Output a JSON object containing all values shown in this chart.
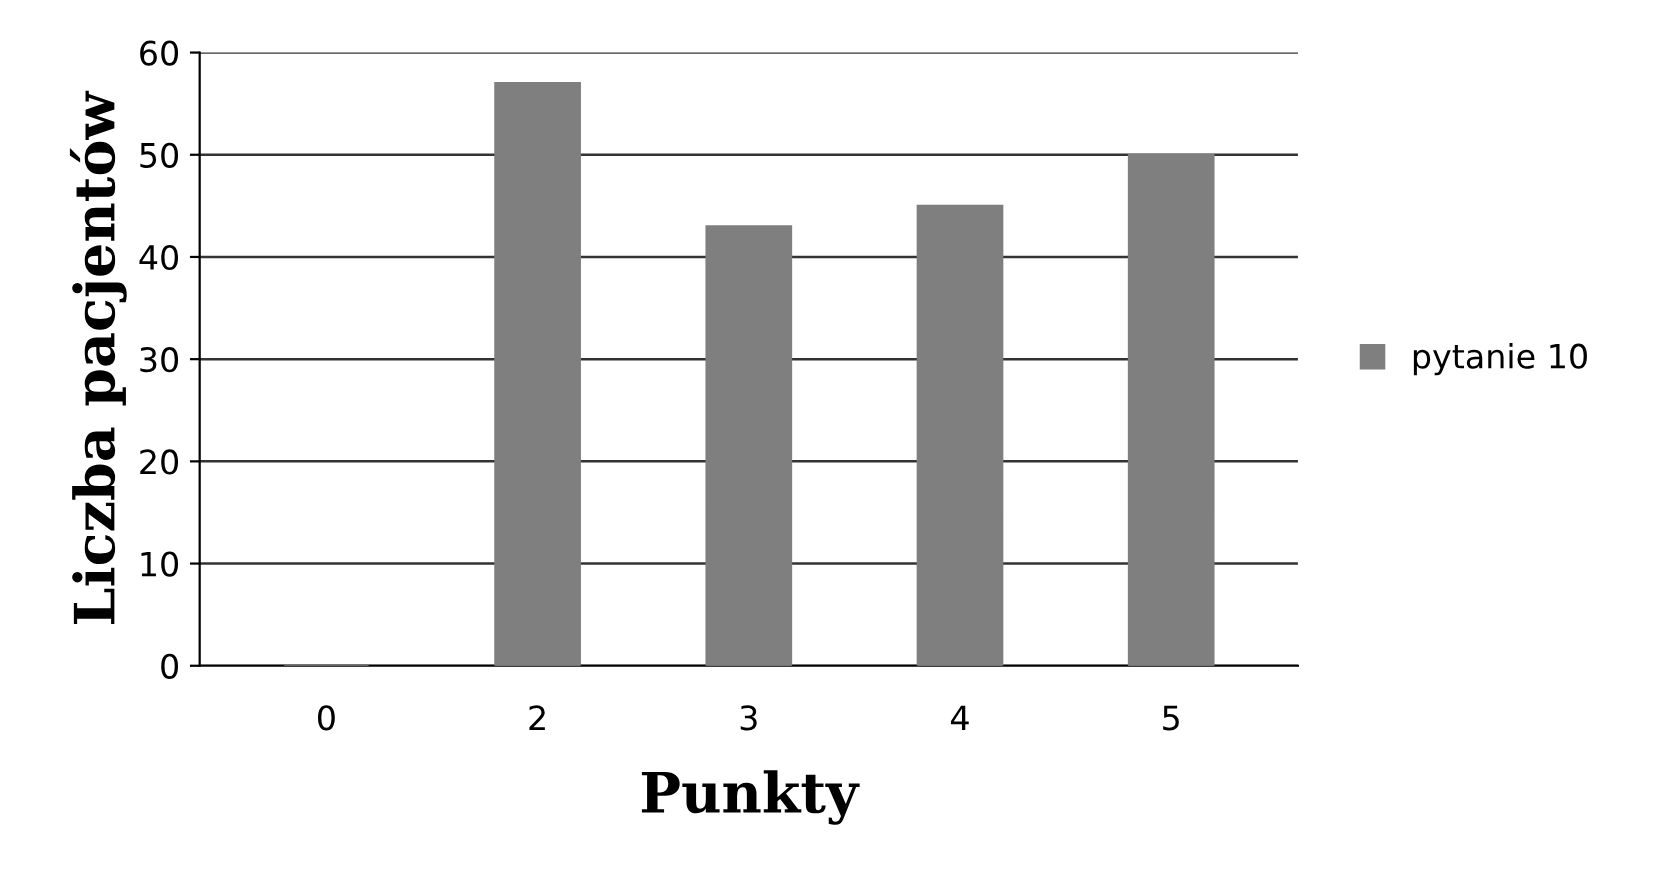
{
  "chart_data": {
    "type": "bar",
    "xlabel": "Punkty",
    "ylabel": "Liczba pacjentów",
    "categories": [
      "0",
      "2",
      "3",
      "4",
      "5"
    ],
    "series": [
      {
        "name": "pytanie 10",
        "color": "#7f7f7f",
        "values": [
          0,
          57,
          43,
          45,
          50
        ]
      }
    ],
    "ylim": [
      0,
      60
    ],
    "yticks": [
      0,
      10,
      20,
      30,
      40,
      50,
      60
    ],
    "grid": "y",
    "legend": "right"
  }
}
